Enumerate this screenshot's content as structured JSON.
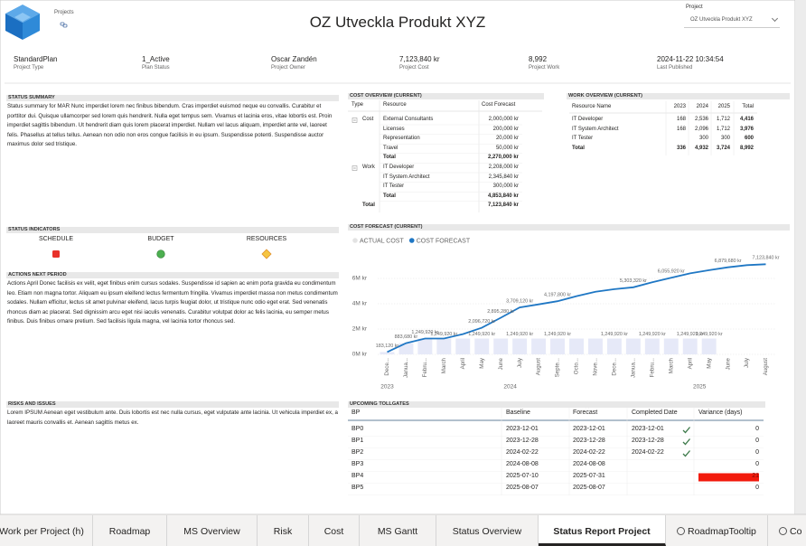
{
  "header": {
    "logo_caption": "Projects",
    "title": "OZ Utveckla Produkt XYZ",
    "slicer": {
      "label": "Project",
      "value": "OZ Utveckla Produkt XYZ"
    }
  },
  "kpis": [
    {
      "value": "StandardPlan",
      "label": "Project Type"
    },
    {
      "value": "1_Active",
      "label": "Plan Status"
    },
    {
      "value": "Oscar Zandén",
      "label": "Project Owner"
    },
    {
      "value": "7,123,840 kr",
      "label": "Project Cost"
    },
    {
      "value": "8,992",
      "label": "Project Work"
    },
    {
      "value": "2024-11-22 10:34:54",
      "label": "Last Published"
    }
  ],
  "status_summary": {
    "title": "STATUS SUMMARY",
    "text": "Status summary for MAR Nunc imperdiet lorem nec finibus bibendum. Cras imperdiet euismod neque eu convallis. Curabitur et porttitor dui. Quisque ullamcorper sed lorem quis hendrerit. Nulla eget tempus sem. Vivamus et lacinia eros, vitae lobortis est. Proin imperdiet sagittis bibendum. Ut hendrerit diam quis lorem placerat imperdiet. Nullam vel lacus aliquam, imperdiet ante vel, laoreet felis. Phasellus at tellus tellus. Aenean non odio non eros congue facilisis in eu ipsum. Suspendisse potenti. Suspendisse auctor maximus dolor sed tristique."
  },
  "cost_overview": {
    "title": "COST OVERVIEW (CURRENT)",
    "columns": [
      "Type",
      "Resource",
      "Cost Forecast"
    ],
    "groups": [
      {
        "type": "Cost",
        "rows": [
          [
            "External Consultants",
            "2,000,000 kr"
          ],
          [
            "Licenses",
            "200,000 kr"
          ],
          [
            "Representation",
            "20,000 kr"
          ],
          [
            "Travel",
            "50,000 kr"
          ]
        ],
        "total": [
          "Total",
          "2,270,000 kr"
        ]
      },
      {
        "type": "Work",
        "rows": [
          [
            "IT Developer",
            "2,208,000 kr"
          ],
          [
            "IT System Architect",
            "2,345,840 kr"
          ],
          [
            "IT Tester",
            "300,000 kr"
          ]
        ],
        "total": [
          "Total",
          "4,853,840 kr"
        ]
      }
    ],
    "grand_total": [
      "Total",
      "7,123,840 kr"
    ]
  },
  "work_overview": {
    "title": "WORK OVERVIEW (CURRENT)",
    "columns": [
      "Resource Name",
      "2023",
      "2024",
      "2025",
      "Total"
    ],
    "rows": [
      [
        "IT Developer",
        "168",
        "2,536",
        "1,712",
        "4,416"
      ],
      [
        "IT System Architect",
        "168",
        "2,096",
        "1,712",
        "3,976"
      ],
      [
        "IT Tester",
        null,
        "300",
        "300",
        "600"
      ]
    ],
    "total": [
      "Total",
      "336",
      "4,932",
      "3,724",
      "8,992"
    ]
  },
  "status_indicators": {
    "title": "STATUS INDICATORS",
    "items": [
      {
        "label": "SCHEDULE",
        "color": "#e8312a",
        "shape": "square"
      },
      {
        "label": "BUDGET",
        "color": "#4caf50",
        "shape": "circle"
      },
      {
        "label": "RESOURCES",
        "color": "#f5c542",
        "shape": "diamond"
      }
    ]
  },
  "actions": {
    "title": "ACTIONS NEXT PERIOD",
    "text": "Actions April Donec facilisis ex velit, eget finibus enim cursus sodales. Suspendisse id sapien ac enim porta gravida eu condimentum leo. Etiam non magna tortor. Aliquam eu ipsum eleifend lectus fermentum fringilla. Vivamus imperdiet massa non metus condimentum sodales. Nullam efficitur, lectus sit amet pulvinar eleifend, lacus turpis feugiat dolor, ut tristique nunc odio eget erat. Sed venenatis rhoncus diam ac placerat. Sed dignissim arcu eget nisi iaculis venenatis. Curabitur volutpat dolor ac felis lacinia, eu semper metus finibus. Duis finibus ornare pretium. Sed facilisis ligula magna, vel lacinia tortor rhoncus sed."
  },
  "risks": {
    "title": "RISKS AND ISSUES",
    "text": "Lorem IPSUM Aenean eget vestibulum ante. Duis lobortis est nec nulla cursus, eget vulputate ante lacinia. Ut vehicula imperdiet ex, a laoreet mauris convallis et. Aenean sagittis metus ex."
  },
  "chart_data": {
    "type": "combo",
    "title": "COST FORECAST (CURRENT)",
    "categories": [
      "Dece...",
      "Janua...",
      "Febru...",
      "March",
      "April",
      "May",
      "June",
      "July",
      "August",
      "Septe...",
      "Octo...",
      "Nove...",
      "Dece...",
      "Janua...",
      "Febru...",
      "March",
      "April",
      "May",
      "June",
      "July",
      "August"
    ],
    "year_groups": [
      {
        "label": "2023",
        "months": 1
      },
      {
        "label": "2024",
        "months": 12
      },
      {
        "label": "2025",
        "months": 8
      }
    ],
    "series": [
      {
        "name": "ACTUAL COST",
        "kind": "bar",
        "color": "#e6e9f8",
        "values": [
          183120,
          883680,
          1249920,
          1249920,
          1249920,
          1249920,
          1249920,
          1249920,
          1249920,
          1249920,
          1249920,
          1249920,
          1249920,
          1249920,
          1249920,
          1249920,
          1249920,
          1249920,
          null,
          null,
          null
        ],
        "value_labels": [
          null,
          null,
          null,
          "1,249,920 kr",
          null,
          "1,249,920 kr",
          null,
          "1,249,920 kr",
          null,
          "1,249,920 kr",
          null,
          null,
          "1,249,920 kr",
          null,
          "1,249,920 kr",
          null,
          "1,249,920 kr",
          "1,249,920 kr",
          null,
          null,
          null
        ]
      },
      {
        "name": "COST FORECAST",
        "kind": "line",
        "color": "#1f77c4",
        "values": [
          183120,
          883680,
          1249920,
          1249920,
          1600000,
          2096720,
          2895280,
          3709120,
          3950000,
          4197800,
          4600000,
          4950000,
          5150000,
          5303320,
          5700000,
          6055920,
          6400000,
          6650000,
          6879680,
          7050000,
          7123840
        ],
        "value_labels": [
          "183,120 kr",
          "883,680 kr",
          "1,249,920 kr",
          null,
          null,
          "2,096,720 kr",
          "2,895,280 kr",
          "3,709,120 kr",
          null,
          "4,197,800 kr",
          null,
          null,
          null,
          "5,303,320 kr",
          null,
          "6,055,920 kr",
          null,
          null,
          "6,879,680 kr",
          null,
          "7,123,840 kr"
        ]
      }
    ],
    "ylim": [
      0,
      8000000
    ],
    "yticks": [
      {
        "value": 0,
        "label": "0M kr"
      },
      {
        "value": 2000000,
        "label": "2M kr"
      },
      {
        "value": 4000000,
        "label": "4M kr"
      },
      {
        "value": 6000000,
        "label": "6M kr"
      }
    ],
    "grid": true
  },
  "tollgates": {
    "title": "UPCOMING TOLLGATES",
    "columns": [
      "BP",
      "Baseline",
      "Forecast",
      "Completed Date",
      "Variance (days)"
    ],
    "rows": [
      [
        "BP0",
        "2023-12-01",
        "2023-12-01",
        "2023-12-01",
        0
      ],
      [
        "BP1",
        "2023-12-28",
        "2023-12-28",
        "2023-12-28",
        0
      ],
      [
        "BP2",
        "2024-02-22",
        "2024-02-22",
        "2024-02-22",
        0
      ],
      [
        "BP3",
        "2024-08-08",
        "2024-08-08",
        null,
        0
      ],
      [
        "BP4",
        "2025-07-10",
        "2025-07-31",
        null,
        21
      ],
      [
        "BP5",
        "2025-08-07",
        "2025-08-07",
        null,
        0
      ]
    ],
    "variance_color": "#f21a0c"
  },
  "tabs": {
    "items": [
      "Work per Project (h)",
      "Roadmap",
      "MS Overview",
      "Risk",
      "Cost",
      "MS Gantt",
      "Status Overview",
      "Status Report Project",
      "RoadmapTooltip",
      "Co"
    ],
    "active": 7
  }
}
